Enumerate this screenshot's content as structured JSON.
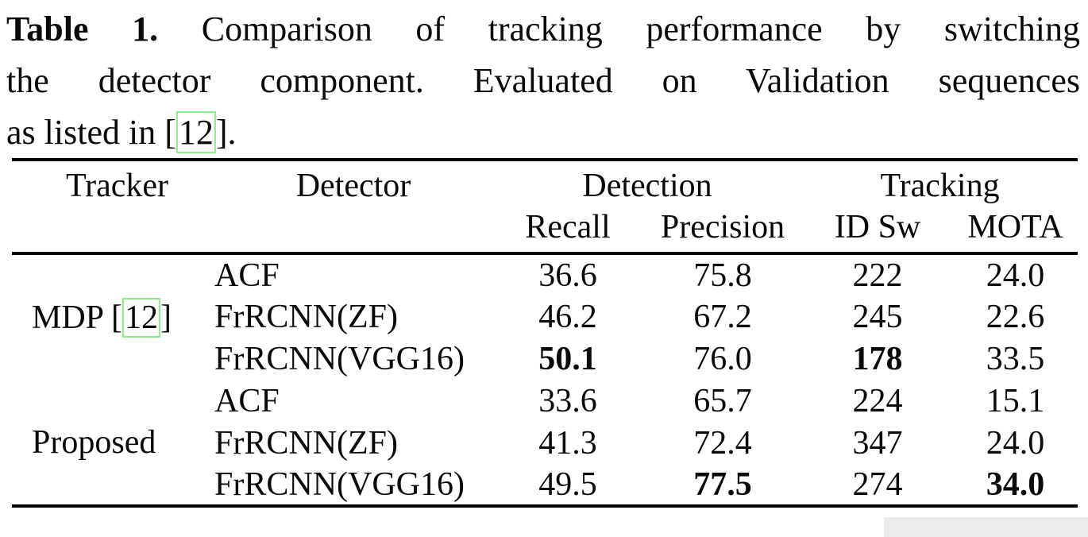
{
  "caption": {
    "label": "Table 1.",
    "line1_rest": "Comparison of tracking performance by switching",
    "line2": "the detector component.  Evaluated on Validation sequences",
    "line3_prefix": "as listed in [",
    "citation": "12",
    "line3_suffix": "]."
  },
  "table": {
    "columns": {
      "tracker": "Tracker",
      "detector": "Detector",
      "detection_group": "Detection",
      "tracking_group": "Tracking",
      "recall": "Recall",
      "precision": "Precision",
      "id_switches": "ID Sw",
      "mota": "MOTA"
    },
    "groups": [
      {
        "tracker_prefix": "MDP [",
        "tracker_citation": "12",
        "tracker_suffix": "]",
        "rows": [
          {
            "detector": "ACF",
            "recall": "36.6",
            "precision": "75.8",
            "id_sw": "222",
            "mota": "24.0"
          },
          {
            "detector": "FrRCNN(ZF)",
            "recall": "46.2",
            "precision": "67.2",
            "id_sw": "245",
            "mota": "22.6"
          },
          {
            "detector": "FrRCNN(VGG16)",
            "recall": "50.1",
            "precision": "76.0",
            "id_sw": "178",
            "mota": "33.5"
          }
        ]
      },
      {
        "tracker": "Proposed",
        "rows": [
          {
            "detector": "ACF",
            "recall": "33.6",
            "precision": "65.7",
            "id_sw": "224",
            "mota": "15.1"
          },
          {
            "detector": "FrRCNN(ZF)",
            "recall": "41.3",
            "precision": "72.4",
            "id_sw": "347",
            "mota": "24.0"
          },
          {
            "detector": "FrRCNN(VGG16)",
            "recall": "49.5",
            "precision": "77.5",
            "id_sw": "274",
            "mota": "34.0"
          }
        ]
      }
    ]
  },
  "colors": {
    "text": "#0a0a0a",
    "rule": "#000000",
    "citation_box": "#90ee90",
    "background": "#ffffff",
    "artifact": "#ececec"
  }
}
